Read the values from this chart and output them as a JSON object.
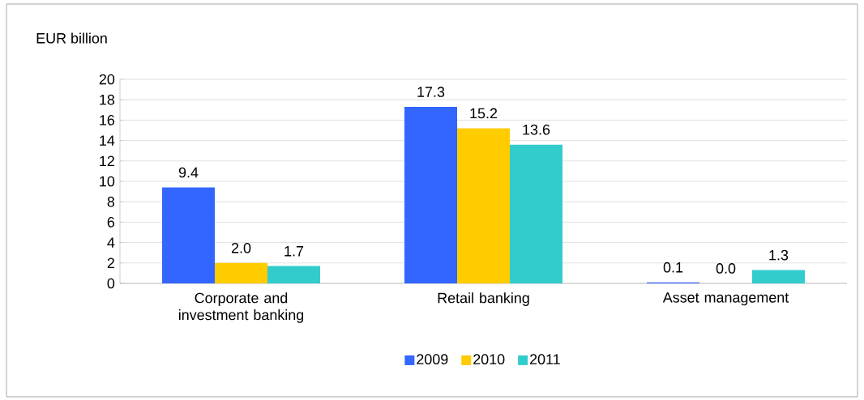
{
  "chart_data": {
    "type": "bar",
    "ylabel": "EUR billion",
    "categories": [
      "Corporate and investment banking",
      "Retail banking",
      "Asset management"
    ],
    "series": [
      {
        "name": "2009",
        "color": "#3366ff",
        "values": [
          9.4,
          17.3,
          0.1
        ],
        "value_labels": [
          "9.4",
          "17.3",
          "0.1"
        ]
      },
      {
        "name": "2010",
        "color": "#ffcc00",
        "values": [
          2.0,
          15.2,
          0.0
        ],
        "value_labels": [
          "2.0",
          "15.2",
          "0.0"
        ]
      },
      {
        "name": "2011",
        "color": "#33cccc",
        "values": [
          1.7,
          13.6,
          1.3
        ],
        "value_labels": [
          "1.7",
          "13.6",
          "1.3"
        ]
      }
    ],
    "ylim": [
      0,
      20
    ],
    "yticks": [
      0,
      2,
      4,
      6,
      8,
      10,
      12,
      14,
      16,
      18,
      20
    ],
    "grid": "y",
    "legend": "bottom"
  }
}
